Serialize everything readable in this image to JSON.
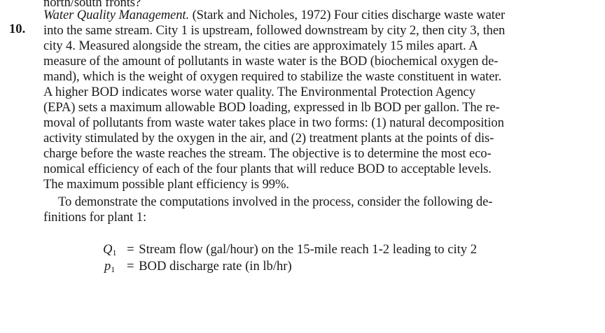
{
  "prev_line": "north/south fronts?",
  "problem": {
    "number": "10.",
    "title": "Water Quality Management.",
    "first_line_rest": " (Stark and Nicholes, 1972) Four cities discharge waste water",
    "lines": [
      "into the same stream. City 1 is upstream, followed downstream by city 2, then city 3, then",
      "city 4. Measured alongside the stream, the cities are approximately 15 miles apart. A",
      "measure of the amount of pollutants in waste water is the BOD (biochemical oxygen de-",
      "mand), which is the weight of oxygen required to stabilize the waste constituent in water.",
      "A higher BOD indicates worse water quality. The Environmental Protection Agency",
      "(EPA) sets a maximum allowable BOD loading, expressed in lb BOD per gallon. The re-",
      "moval of pollutants from waste water takes place in two forms: (1) natural decomposition",
      "activity stimulated by the oxygen in the air, and (2) treatment plants at the points of dis-",
      "charge before the waste reaches the stream. The objective is to determine the most eco-",
      "nomical efficiency of each of the four plants that will reduce BOD to acceptable levels.",
      "The maximum possible plant efficiency is 99%."
    ],
    "para2_lines": [
      "To demonstrate the computations involved in the process, consider the following de-",
      "finitions for plant 1:"
    ]
  },
  "definitions": [
    {
      "symbol": "Q",
      "subscript": "1",
      "equals": "=",
      "text": "Stream flow (gal/hour) on the 15-mile reach 1-2 leading to city 2"
    },
    {
      "symbol": "p",
      "subscript": "1",
      "equals": "=",
      "text": "BOD discharge rate (in lb/hr)"
    }
  ]
}
